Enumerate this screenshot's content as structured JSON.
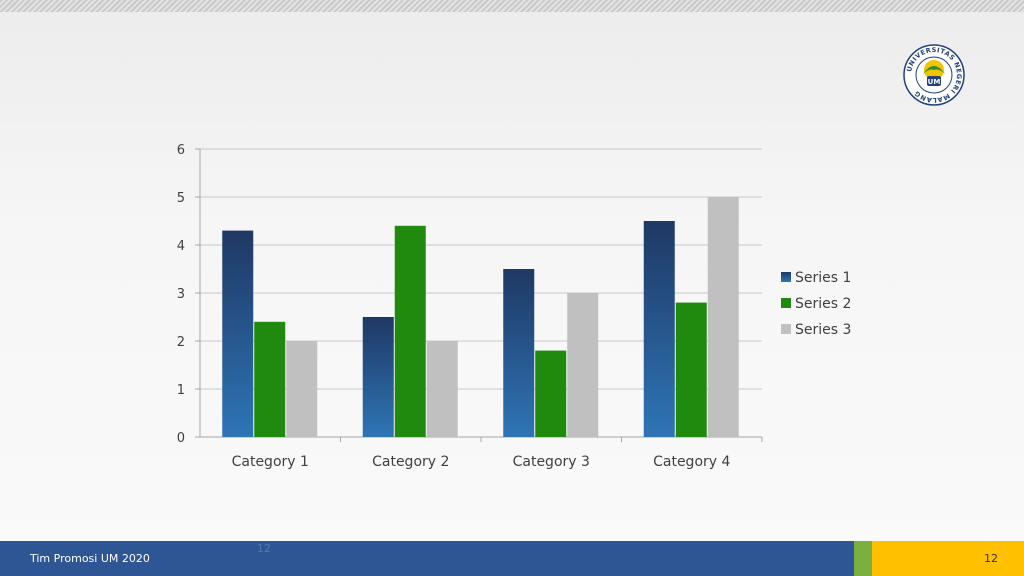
{
  "slide": {
    "footer_text": "Tim Promosi UM 2020",
    "footer_ghost_number": "12",
    "page_number": "12",
    "logo": {
      "icon": "university-seal-icon",
      "ring_text": "UNIVERSITAS NEGERI MALANG",
      "center_text": "UM"
    }
  },
  "colors": {
    "series_1_top": "#1f3864",
    "series_1_bottom": "#2e75b6",
    "series_2": "#1f8a0e",
    "series_3": "#c0c0c0",
    "footer_blue": "#2e5594",
    "footer_green": "#79b040",
    "footer_yellow": "#ffc000"
  },
  "chart_data": {
    "type": "bar",
    "categories": [
      "Category 1",
      "Category 2",
      "Category 3",
      "Category 4"
    ],
    "series": [
      {
        "name": "Series 1",
        "values": [
          4.3,
          2.5,
          3.5,
          4.5
        ]
      },
      {
        "name": "Series 2",
        "values": [
          2.4,
          4.4,
          1.8,
          2.8
        ]
      },
      {
        "name": "Series 3",
        "values": [
          2,
          2,
          3,
          5
        ]
      }
    ],
    "ylim": [
      0,
      6
    ],
    "yticks": [
      "0",
      "1",
      "2",
      "3",
      "4",
      "5",
      "6"
    ],
    "grid": true,
    "legend_position": "right"
  }
}
